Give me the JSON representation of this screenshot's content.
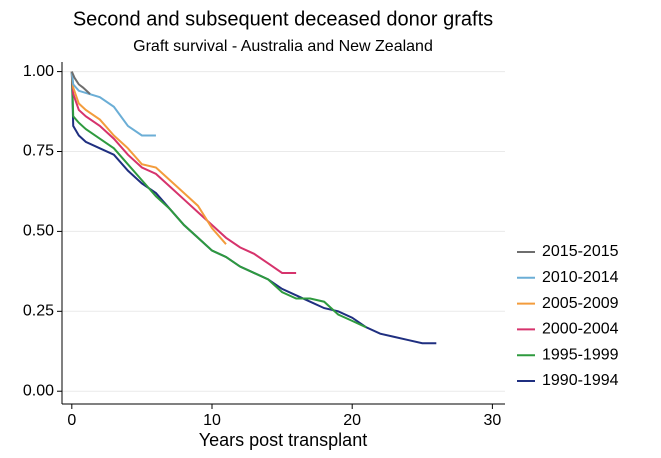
{
  "chart_data": {
    "type": "line",
    "title": "Second and subsequent deceased donor grafts",
    "subtitle": "Graft survival - Australia and New Zealand",
    "x_label": "Years post transplant",
    "xlim": [
      -0.7,
      30.9
    ],
    "xticks": [
      0,
      10,
      20,
      30
    ],
    "ylim": [
      -0.04,
      1.03
    ],
    "yticks": [
      {
        "value": 0,
        "label": "0.00"
      },
      {
        "value": 0.25,
        "label": "0.25"
      },
      {
        "value": 0.5,
        "label": "0.50"
      },
      {
        "value": 0.75,
        "label": "0.75"
      },
      {
        "value": 1,
        "label": "1.00"
      }
    ],
    "grid": true,
    "legend": "right",
    "series": [
      {
        "name": "2015-2015",
        "color": "#6e6e6e",
        "x": [
          0,
          0.2,
          0.5,
          0.8,
          1.3
        ],
        "values": [
          1.0,
          0.98,
          0.96,
          0.95,
          0.93
        ]
      },
      {
        "name": "2010-2014",
        "color": "#6baed6",
        "x": [
          0,
          0.1,
          0.5,
          2,
          3,
          4,
          5,
          6
        ],
        "values": [
          1.0,
          0.96,
          0.94,
          0.92,
          0.89,
          0.83,
          0.8,
          0.8
        ]
      },
      {
        "name": "2005-2009",
        "color": "#f39c3c",
        "x": [
          0,
          0.1,
          0.5,
          1,
          2,
          3,
          4,
          5,
          6,
          7,
          8,
          9,
          10,
          11
        ],
        "values": [
          1.0,
          0.95,
          0.9,
          0.88,
          0.85,
          0.8,
          0.76,
          0.71,
          0.7,
          0.66,
          0.62,
          0.58,
          0.51,
          0.46
        ]
      },
      {
        "name": "2000-2004",
        "color": "#d6336c",
        "x": [
          0,
          0.1,
          0.5,
          1,
          2,
          3,
          4,
          5,
          6,
          7,
          8,
          9,
          10,
          11,
          12,
          13,
          14,
          15,
          16
        ],
        "values": [
          1.0,
          0.93,
          0.88,
          0.86,
          0.83,
          0.79,
          0.74,
          0.7,
          0.68,
          0.64,
          0.6,
          0.56,
          0.52,
          0.48,
          0.45,
          0.43,
          0.4,
          0.37,
          0.37
        ]
      },
      {
        "name": "1995-1999",
        "color": "#2e9a3e",
        "x": [
          0,
          0.1,
          0.5,
          1,
          2,
          3,
          4,
          5,
          6,
          7,
          8,
          9,
          10,
          11,
          12,
          13,
          14,
          15,
          16,
          17,
          18,
          19,
          20,
          21
        ],
        "values": [
          1.0,
          0.86,
          0.84,
          0.82,
          0.79,
          0.76,
          0.71,
          0.66,
          0.61,
          0.57,
          0.52,
          0.48,
          0.44,
          0.42,
          0.39,
          0.37,
          0.35,
          0.31,
          0.29,
          0.29,
          0.28,
          0.24,
          0.22,
          0.2
        ]
      },
      {
        "name": "1990-1994",
        "color": "#1f2f80",
        "x": [
          0,
          0.1,
          0.5,
          1,
          2,
          3,
          4,
          5,
          6,
          7,
          8,
          9,
          10,
          11,
          12,
          13,
          14,
          15,
          16,
          17,
          18,
          19,
          20,
          21,
          22,
          23,
          24,
          25,
          26
        ],
        "values": [
          1.0,
          0.83,
          0.8,
          0.78,
          0.76,
          0.74,
          0.69,
          0.65,
          0.62,
          0.57,
          0.52,
          0.48,
          0.44,
          0.42,
          0.39,
          0.37,
          0.35,
          0.32,
          0.3,
          0.28,
          0.26,
          0.25,
          0.23,
          0.2,
          0.18,
          0.17,
          0.16,
          0.15,
          0.15
        ]
      }
    ]
  }
}
